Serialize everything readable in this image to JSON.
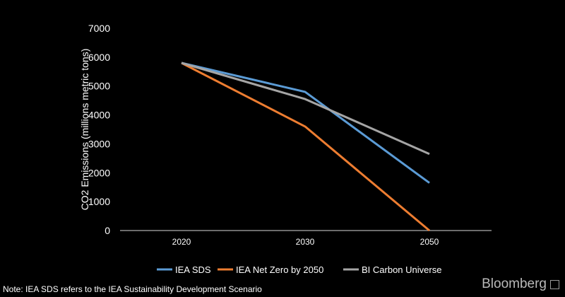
{
  "chart_data": {
    "type": "line",
    "x": [
      "2020",
      "2030",
      "2050"
    ],
    "series": [
      {
        "name": "IEA SDS",
        "values": [
          5800,
          4800,
          1650
        ],
        "color": "#5b9bd5"
      },
      {
        "name": "IEA Net Zero by 2050",
        "values": [
          5800,
          3600,
          0
        ],
        "color": "#ed7d31"
      },
      {
        "name": "BI Carbon Universe",
        "values": [
          5800,
          4550,
          2650
        ],
        "color": "#a5a5a5"
      }
    ],
    "ylabel": "CO2 Emissions (millions metric tons)",
    "ylim": [
      0,
      7000
    ],
    "yticks": [
      "0",
      "1000",
      "2000",
      "3000",
      "4000",
      "5000",
      "6000",
      "7000"
    ],
    "grid": false,
    "legend_position": "bottom"
  },
  "note": "Note: IEA SDS refers to the IEA Sustainability Development Scenario",
  "brand": "Bloomberg"
}
